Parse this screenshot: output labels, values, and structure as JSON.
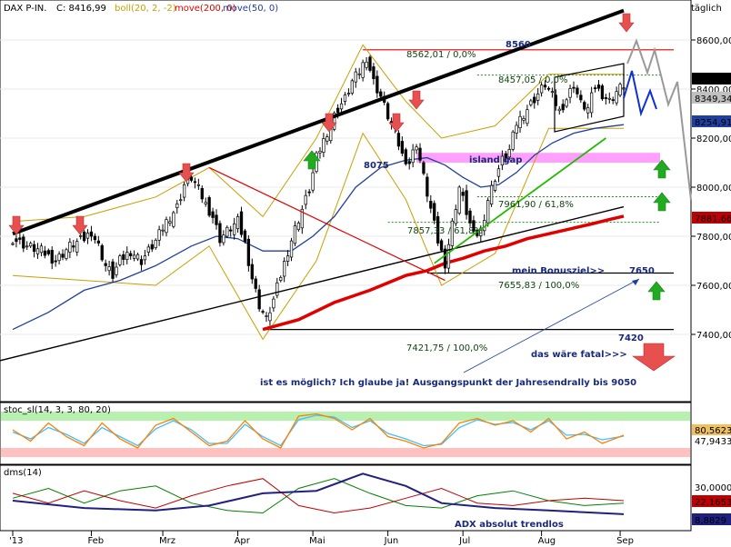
{
  "header": {
    "symbol": "DAX P-IN.",
    "close_label": "C: 8416,99",
    "boll_label": "boll(20, 2, -2)",
    "ma200_label": "move(200, 0)",
    "ma50_label": "move(50, 0)",
    "period": "täglich"
  },
  "colors": {
    "boll": "#c8a000",
    "ma200": "#e00000",
    "ma50": "#2040a0",
    "candle_up": "#ffffff",
    "candle_down": "#000000",
    "arrow_down": "#e85050",
    "arrow_up": "#22aa22",
    "gap_zone": "#ff80ff",
    "stoch_k": "#ff8000",
    "stoch_d": "#40c0ff",
    "stoch_high_zone": "#b8f0b0",
    "stoch_low_zone": "#ffc0c0",
    "dms_adx": "#202080",
    "dms_plus": "#008000",
    "dms_minus": "#c00000",
    "axis_badge_close": "#000000",
    "axis_badge_red": "#c00000",
    "axis_badge_blue": "#2040a0"
  },
  "annotations": {
    "level_8560": "8560",
    "fib_8562": "8562,01 / 0,0%",
    "fib_8457": "8457,05 / 0,0%",
    "level_8075": "8075",
    "island_gap": "island gap",
    "fib_7961": "7961,90 / 61,8%",
    "fib_7857": "7857,33 / 61,8%",
    "bonusziel": "mein Bonusziel>>",
    "level_7650": "7650",
    "fib_7655": "7655,83 / 100,0%",
    "level_7420": "7420",
    "fib_7421": "7421,75 / 100,0%",
    "fatal": "das wäre fatal>>>",
    "question": "ist es möglich? Ich glaube ja! Ausgangspunkt der Jahresendrally bis 9050",
    "adx_note": "ADX absolut trendlos"
  },
  "stoch_panel": {
    "label": "stoc_sl(14, 3, 3, 80, 20)",
    "value_hi": "80,5623",
    "value_k": "47,9433"
  },
  "dms_panel": {
    "label": "dms(14)",
    "value_1": "30,0000",
    "value_2": "22,1653",
    "value_3": "8,8829"
  },
  "badges": {
    "close": "8416,99",
    "boll_mid": "8349,34",
    "ma50": "8254,91",
    "ma200": "7881,66"
  },
  "chart_data": {
    "type": "candlestick",
    "title": "",
    "y_axis_ticks": [
      "8600,00",
      "8400,00",
      "8200,00",
      "8000,00",
      "7800,00",
      "7600,00",
      "7400,00"
    ],
    "y_ticks_values": [
      8600,
      8400,
      8200,
      8000,
      7800,
      7600,
      7400
    ],
    "ylim": [
      7260,
      8700
    ],
    "x_tick_labels": [
      "'13",
      "Feb",
      "Mrz",
      "Apr",
      "Mai",
      "Jun",
      "Jul",
      "Aug",
      "Sep"
    ],
    "x_ticks_day": [
      0,
      22,
      42,
      63,
      84,
      105,
      126,
      148,
      170
    ],
    "close_path": [
      [
        0,
        7790
      ],
      [
        4,
        7760
      ],
      [
        8,
        7740
      ],
      [
        12,
        7700
      ],
      [
        16,
        7760
      ],
      [
        20,
        7790
      ],
      [
        22,
        7820
      ],
      [
        24,
        7760
      ],
      [
        26,
        7680
      ],
      [
        28,
        7640
      ],
      [
        30,
        7700
      ],
      [
        33,
        7740
      ],
      [
        36,
        7700
      ],
      [
        40,
        7780
      ],
      [
        43,
        7860
      ],
      [
        46,
        7920
      ],
      [
        48,
        8010
      ],
      [
        50,
        8040
      ],
      [
        52,
        7990
      ],
      [
        54,
        7930
      ],
      [
        56,
        7880
      ],
      [
        58,
        7790
      ],
      [
        60,
        7820
      ],
      [
        63,
        7860
      ],
      [
        65,
        7770
      ],
      [
        67,
        7630
      ],
      [
        69,
        7520
      ],
      [
        71,
        7460
      ],
      [
        73,
        7540
      ],
      [
        75,
        7640
      ],
      [
        77,
        7740
      ],
      [
        79,
        7830
      ],
      [
        81,
        7910
      ],
      [
        83,
        7990
      ],
      [
        85,
        8120
      ],
      [
        87,
        8190
      ],
      [
        89,
        8260
      ],
      [
        91,
        8320
      ],
      [
        93,
        8360
      ],
      [
        95,
        8430
      ],
      [
        97,
        8470
      ],
      [
        99,
        8530
      ],
      [
        101,
        8430
      ],
      [
        103,
        8370
      ],
      [
        105,
        8290
      ],
      [
        107,
        8220
      ],
      [
        109,
        8130
      ],
      [
        111,
        8100
      ],
      [
        113,
        8180
      ],
      [
        115,
        8040
      ],
      [
        117,
        7910
      ],
      [
        119,
        7780
      ],
      [
        121,
        7690
      ],
      [
        123,
        7850
      ],
      [
        125,
        8000
      ],
      [
        127,
        7900
      ],
      [
        129,
        7800
      ],
      [
        131,
        7820
      ],
      [
        133,
        7950
      ],
      [
        135,
        8040
      ],
      [
        137,
        8110
      ],
      [
        139,
        8150
      ],
      [
        141,
        8260
      ],
      [
        143,
        8300
      ],
      [
        145,
        8340
      ],
      [
        147,
        8380
      ],
      [
        149,
        8420
      ],
      [
        151,
        8370
      ],
      [
        153,
        8310
      ],
      [
        155,
        8360
      ],
      [
        157,
        8420
      ],
      [
        159,
        8340
      ],
      [
        161,
        8320
      ],
      [
        163,
        8410
      ],
      [
        165,
        8380
      ],
      [
        167,
        8350
      ],
      [
        169,
        8390
      ],
      [
        171,
        8417
      ]
    ],
    "bollinger": {
      "upper": [
        [
          0,
          7860
        ],
        [
          20,
          7880
        ],
        [
          40,
          7960
        ],
        [
          55,
          8080
        ],
        [
          70,
          7880
        ],
        [
          85,
          8200
        ],
        [
          98,
          8580
        ],
        [
          110,
          8350
        ],
        [
          120,
          8200
        ],
        [
          135,
          8250
        ],
        [
          150,
          8460
        ],
        [
          171,
          8460
        ]
      ],
      "lower": [
        [
          0,
          7640
        ],
        [
          20,
          7620
        ],
        [
          40,
          7600
        ],
        [
          55,
          7760
        ],
        [
          70,
          7380
        ],
        [
          85,
          7700
        ],
        [
          98,
          8220
        ],
        [
          110,
          7950
        ],
        [
          120,
          7600
        ],
        [
          135,
          7730
        ],
        [
          150,
          8240
        ],
        [
          171,
          8240
        ]
      ]
    },
    "ma50": [
      [
        0,
        7420
      ],
      [
        10,
        7490
      ],
      [
        20,
        7580
      ],
      [
        30,
        7620
      ],
      [
        40,
        7680
      ],
      [
        50,
        7760
      ],
      [
        57,
        7800
      ],
      [
        63,
        7790
      ],
      [
        70,
        7740
      ],
      [
        78,
        7740
      ],
      [
        84,
        7800
      ],
      [
        90,
        7880
      ],
      [
        96,
        8000
      ],
      [
        103,
        8080
      ],
      [
        110,
        8110
      ],
      [
        116,
        8120
      ],
      [
        121,
        8090
      ],
      [
        126,
        8040
      ],
      [
        131,
        8000
      ],
      [
        136,
        8010
      ],
      [
        141,
        8060
      ],
      [
        146,
        8130
      ],
      [
        151,
        8180
      ],
      [
        157,
        8220
      ],
      [
        163,
        8240
      ],
      [
        171,
        8255
      ]
    ],
    "ma200": [
      [
        70,
        7420
      ],
      [
        80,
        7460
      ],
      [
        90,
        7530
      ],
      [
        100,
        7580
      ],
      [
        110,
        7640
      ],
      [
        116,
        7660
      ],
      [
        121,
        7690
      ],
      [
        126,
        7710
      ],
      [
        132,
        7740
      ],
      [
        138,
        7760
      ],
      [
        144,
        7790
      ],
      [
        150,
        7810
      ],
      [
        156,
        7830
      ],
      [
        162,
        7850
      ],
      [
        167,
        7868
      ],
      [
        171,
        7882
      ]
    ],
    "trendlines": [
      {
        "name": "upper-channel",
        "from": [
          0,
          7810
        ],
        "to": [
          171,
          8720
        ]
      },
      {
        "name": "lower-channel",
        "from": [
          -10,
          7270
        ],
        "to": [
          171,
          7920
        ]
      },
      {
        "name": "red-downtrend",
        "from": [
          55,
          8080
        ],
        "to": [
          121,
          7620
        ]
      },
      {
        "name": "green-uptrend",
        "from": [
          118,
          7690
        ],
        "to": [
          166,
          8200
        ]
      }
    ],
    "horizontal_levels": [
      {
        "label": "8560",
        "value": 8560,
        "from_day": 98,
        "to_day": 171
      },
      {
        "label": "7650",
        "value": 7650,
        "from_day": 116,
        "to_day": 171
      },
      {
        "label": "7420",
        "value": 7420,
        "from_day": 70,
        "to_day": 171
      }
    ],
    "island_gap_zone": [
      8100,
      8140
    ],
    "stochastic": {
      "levels": [
        80,
        20
      ],
      "k": [
        [
          0,
          60
        ],
        [
          5,
          35
        ],
        [
          10,
          75
        ],
        [
          15,
          45
        ],
        [
          20,
          25
        ],
        [
          25,
          75
        ],
        [
          30,
          40
        ],
        [
          35,
          20
        ],
        [
          40,
          70
        ],
        [
          45,
          85
        ],
        [
          50,
          55
        ],
        [
          55,
          25
        ],
        [
          60,
          35
        ],
        [
          65,
          80
        ],
        [
          70,
          40
        ],
        [
          75,
          20
        ],
        [
          80,
          90
        ],
        [
          85,
          95
        ],
        [
          90,
          85
        ],
        [
          95,
          60
        ],
        [
          100,
          85
        ],
        [
          105,
          45
        ],
        [
          110,
          35
        ],
        [
          115,
          20
        ],
        [
          120,
          30
        ],
        [
          125,
          75
        ],
        [
          130,
          85
        ],
        [
          135,
          70
        ],
        [
          140,
          80
        ],
        [
          145,
          55
        ],
        [
          150,
          85
        ],
        [
          155,
          40
        ],
        [
          160,
          55
        ],
        [
          165,
          30
        ],
        [
          171,
          48
        ]
      ],
      "d": [
        [
          0,
          55
        ],
        [
          5,
          40
        ],
        [
          10,
          65
        ],
        [
          15,
          50
        ],
        [
          20,
          30
        ],
        [
          25,
          65
        ],
        [
          30,
          45
        ],
        [
          35,
          25
        ],
        [
          40,
          62
        ],
        [
          45,
          80
        ],
        [
          50,
          60
        ],
        [
          55,
          30
        ],
        [
          60,
          30
        ],
        [
          65,
          72
        ],
        [
          70,
          45
        ],
        [
          75,
          25
        ],
        [
          80,
          82
        ],
        [
          85,
          92
        ],
        [
          90,
          88
        ],
        [
          95,
          65
        ],
        [
          100,
          80
        ],
        [
          105,
          52
        ],
        [
          110,
          40
        ],
        [
          115,
          25
        ],
        [
          120,
          28
        ],
        [
          125,
          65
        ],
        [
          130,
          82
        ],
        [
          135,
          72
        ],
        [
          140,
          76
        ],
        [
          145,
          60
        ],
        [
          150,
          80
        ],
        [
          155,
          48
        ],
        [
          160,
          50
        ],
        [
          165,
          38
        ],
        [
          171,
          46
        ]
      ]
    },
    "dms": {
      "adx": [
        [
          0,
          20
        ],
        [
          20,
          14
        ],
        [
          40,
          12
        ],
        [
          55,
          16
        ],
        [
          70,
          26
        ],
        [
          85,
          28
        ],
        [
          98,
          42
        ],
        [
          110,
          32
        ],
        [
          120,
          18
        ],
        [
          135,
          14
        ],
        [
          150,
          12
        ],
        [
          171,
          9
        ]
      ],
      "plus_di": [
        [
          0,
          22
        ],
        [
          10,
          30
        ],
        [
          20,
          18
        ],
        [
          30,
          28
        ],
        [
          40,
          32
        ],
        [
          50,
          18
        ],
        [
          60,
          12
        ],
        [
          70,
          10
        ],
        [
          80,
          30
        ],
        [
          90,
          38
        ],
        [
          100,
          26
        ],
        [
          110,
          16
        ],
        [
          120,
          14
        ],
        [
          130,
          24
        ],
        [
          140,
          28
        ],
        [
          150,
          20
        ],
        [
          160,
          16
        ],
        [
          171,
          18
        ]
      ],
      "minus_di": [
        [
          0,
          26
        ],
        [
          10,
          18
        ],
        [
          20,
          28
        ],
        [
          30,
          20
        ],
        [
          40,
          14
        ],
        [
          50,
          24
        ],
        [
          60,
          32
        ],
        [
          70,
          38
        ],
        [
          80,
          16
        ],
        [
          90,
          10
        ],
        [
          100,
          14
        ],
        [
          110,
          22
        ],
        [
          120,
          30
        ],
        [
          130,
          18
        ],
        [
          140,
          16
        ],
        [
          150,
          20
        ],
        [
          160,
          22
        ],
        [
          171,
          20
        ]
      ]
    }
  }
}
